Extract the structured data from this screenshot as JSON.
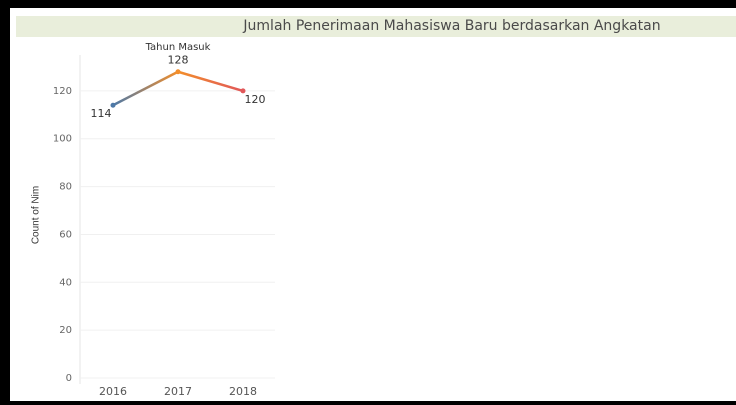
{
  "chart_data": {
    "type": "line",
    "title": "Jumlah Penerimaan Mahasiswa Baru berdasarkan Angkatan",
    "column_header": "Tahun Masuk",
    "y_label": "Count of Nim",
    "categories": [
      "2016",
      "2017",
      "2018"
    ],
    "series": [
      {
        "name": "Count of Nim",
        "colors": [
          "#4e79a7",
          "#f28e2b",
          "#e15759"
        ],
        "values": [
          114,
          128,
          120
        ]
      }
    ],
    "ylim": [
      0,
      135
    ],
    "yticks": [
      0,
      20,
      40,
      60,
      80,
      100,
      120
    ],
    "grid": true
  }
}
